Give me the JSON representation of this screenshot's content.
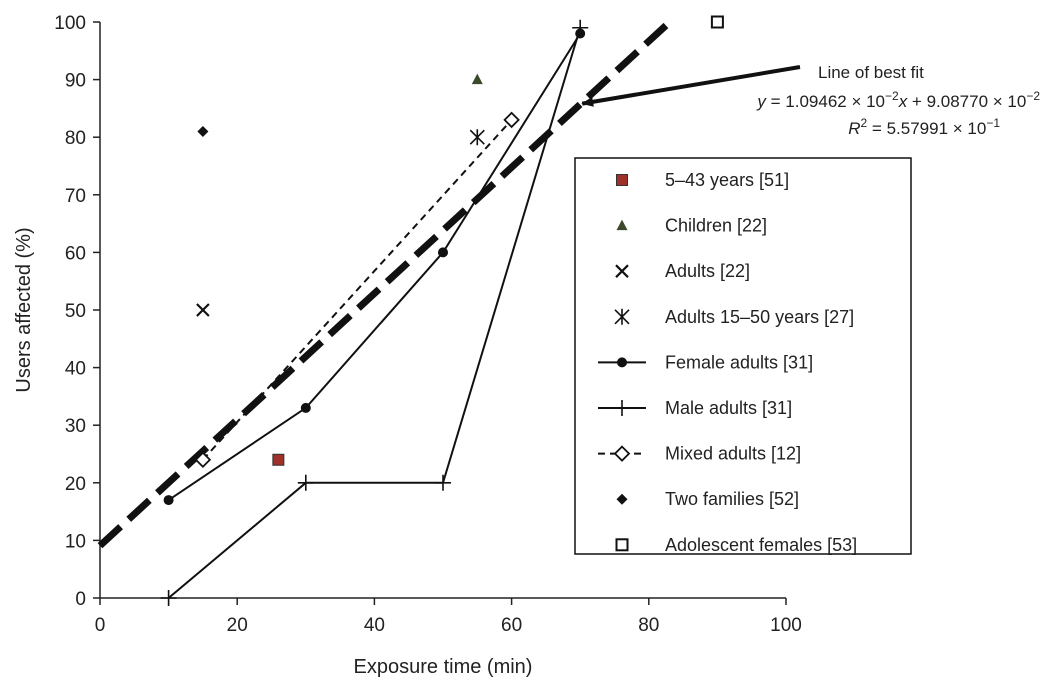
{
  "chart_data": {
    "type": "scatter",
    "xlabel": "Exposure time (min)",
    "ylabel": "Users affected (%)",
    "xlim": [
      0,
      100
    ],
    "ylim": [
      0,
      100
    ],
    "xticks": [
      0,
      20,
      40,
      60,
      80,
      100
    ],
    "yticks": [
      0,
      10,
      20,
      30,
      40,
      50,
      60,
      70,
      80,
      90,
      100
    ],
    "grid": false,
    "legend_position": "right",
    "series": [
      {
        "name": "5–43 years [51]",
        "marker": "square-filled",
        "color": "#a0302a",
        "points": [
          [
            26,
            24
          ]
        ]
      },
      {
        "name": "Children [22]",
        "marker": "triangle",
        "color": "#3a4a2a",
        "points": [
          [
            55,
            90
          ]
        ]
      },
      {
        "name": "Adults [22]",
        "marker": "x",
        "color": "#111111",
        "points": [
          [
            15,
            50
          ]
        ]
      },
      {
        "name": "Adults 15–50 years [27]",
        "marker": "asterisk",
        "color": "#111111",
        "points": [
          [
            55,
            80
          ]
        ]
      },
      {
        "name": "Female adults [31]",
        "marker": "circle",
        "line": "solid",
        "color": "#111111",
        "points": [
          [
            10,
            17
          ],
          [
            30,
            33
          ],
          [
            50,
            60
          ],
          [
            70,
            98
          ]
        ]
      },
      {
        "name": "Male adults [31]",
        "marker": "plus",
        "line": "solid",
        "color": "#111111",
        "points": [
          [
            10,
            0
          ],
          [
            30,
            20
          ],
          [
            50,
            20
          ],
          [
            70,
            99
          ]
        ]
      },
      {
        "name": "Mixed adults [12]",
        "marker": "diamond-open",
        "line": "dashed",
        "color": "#111111",
        "points": [
          [
            15,
            24
          ],
          [
            60,
            83
          ]
        ]
      },
      {
        "name": "Two families [52]",
        "marker": "diamond-filled",
        "color": "#111111",
        "points": [
          [
            15,
            81
          ]
        ]
      },
      {
        "name": "Adolescent females [53]",
        "marker": "square-open",
        "color": "#111111",
        "points": [
          [
            90,
            100
          ]
        ]
      }
    ],
    "fit_line": {
      "slope": 1.09462,
      "intercept": 9.0877
    },
    "annotation": {
      "title": "Line of best fit",
      "equation": "y = 1.09462 × 10−2x + 9.08770 × 10−2",
      "r2": "R2 = 5.57991 × 10−1",
      "arrow_to": [
        70,
        86
      ]
    }
  }
}
